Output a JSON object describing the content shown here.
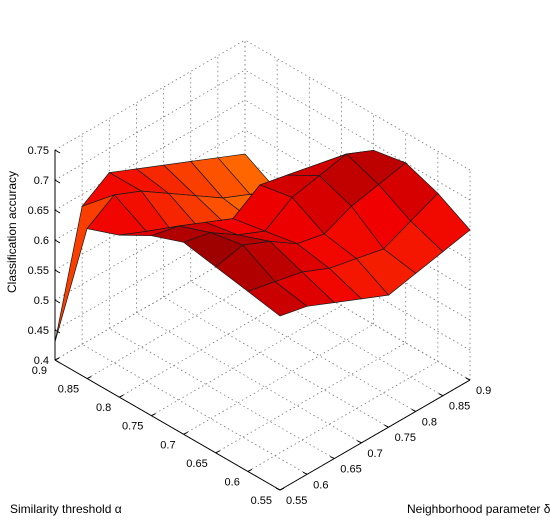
{
  "chart_data": {
    "type": "surface",
    "title": "",
    "zlabel": "Classification accuracy",
    "xlabel": "Similarity threshold α",
    "ylabel": "Neighborhood parameter δ",
    "x_axis_param": "alpha",
    "y_axis_param": "delta",
    "x": [
      0.55,
      0.6,
      0.65,
      0.7,
      0.75,
      0.8,
      0.85,
      0.9
    ],
    "y": [
      0.55,
      0.6,
      0.65,
      0.7,
      0.75,
      0.8,
      0.85,
      0.9
    ],
    "z_ticks": [
      0.4,
      0.45,
      0.5,
      0.55,
      0.6,
      0.65,
      0.7,
      0.75
    ],
    "x_ticks": [
      0.55,
      0.6,
      0.65,
      0.7,
      0.75,
      0.8,
      0.85,
      0.9
    ],
    "y_ticks": [
      0.55,
      0.6,
      0.65,
      0.7,
      0.75,
      0.8,
      0.85,
      0.9
    ],
    "zlim": [
      0.4,
      0.75
    ],
    "colormap": "hot",
    "grid": true,
    "note_rows": "z[i][j]: i indexes alpha (x), j indexes delta (y)",
    "z": [
      [
        0.69,
        0.68,
        0.66,
        0.64,
        0.62,
        0.63,
        0.64,
        0.65
      ],
      [
        0.7,
        0.69,
        0.68,
        0.66,
        0.65,
        0.64,
        0.66,
        0.68
      ],
      [
        0.71,
        0.72,
        0.7,
        0.67,
        0.66,
        0.68,
        0.69,
        0.7
      ],
      [
        0.72,
        0.71,
        0.68,
        0.66,
        0.69,
        0.7,
        0.71,
        0.69
      ],
      [
        0.7,
        0.69,
        0.67,
        0.65,
        0.68,
        0.67,
        0.66,
        0.64
      ],
      [
        0.67,
        0.65,
        0.62,
        0.6,
        0.58,
        0.56,
        0.55,
        0.54
      ],
      [
        0.65,
        0.68,
        0.66,
        0.63,
        0.6,
        0.57,
        0.55,
        0.53
      ],
      [
        0.43,
        0.63,
        0.66,
        0.64,
        0.62,
        0.6,
        0.58,
        0.56
      ]
    ]
  }
}
